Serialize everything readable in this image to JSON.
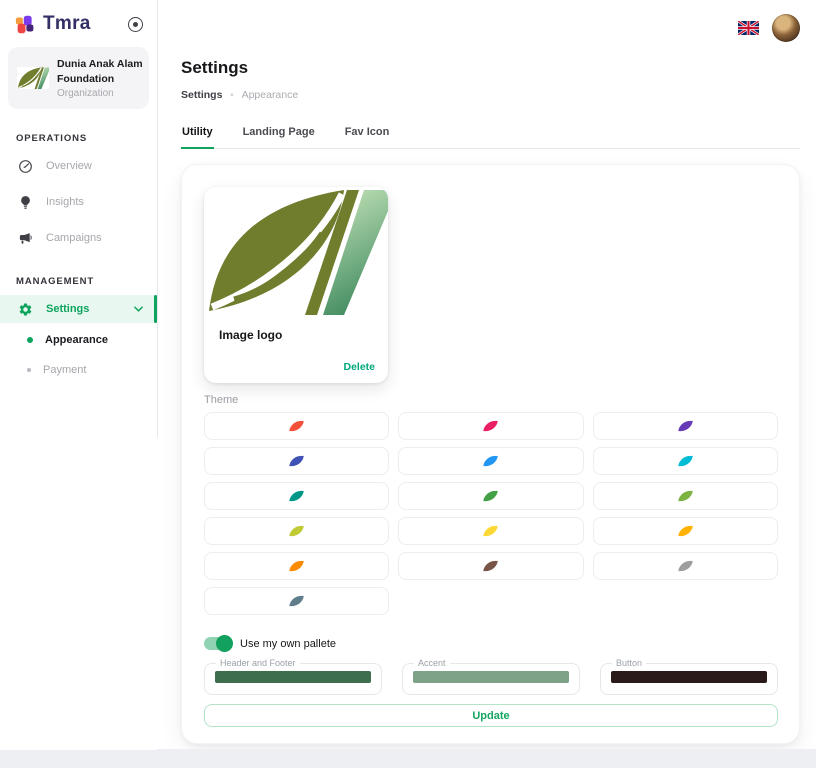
{
  "brand": {
    "name": "Tmra"
  },
  "sidebar": {
    "org": {
      "name": "Dunia Anak Alam Foundation",
      "type": "Organization"
    },
    "sections": [
      {
        "label": "OPERATIONS",
        "items": [
          {
            "label": "Overview",
            "icon": "gauge-icon"
          },
          {
            "label": "Insights",
            "icon": "lightbulb-icon"
          },
          {
            "label": "Campaigns",
            "icon": "megaphone-icon"
          }
        ]
      },
      {
        "label": "MANAGEMENT",
        "items": [
          {
            "label": "Settings",
            "icon": "gear-icon",
            "active": true,
            "expanded": true
          }
        ]
      }
    ],
    "settings_submenu": [
      {
        "label": "Appearance",
        "active": true
      },
      {
        "label": "Payment",
        "active": false
      }
    ]
  },
  "header": {
    "title": "Settings",
    "breadcrumb": {
      "parent": "Settings",
      "separator": "•",
      "current": "Appearance"
    },
    "language_icon": "uk-flag-icon"
  },
  "tabs": [
    {
      "label": "Utility",
      "active": true
    },
    {
      "label": "Landing Page",
      "active": false
    },
    {
      "label": "Fav Icon",
      "active": false
    }
  ],
  "logo_card": {
    "caption": "Image logo",
    "delete_label": "Delete"
  },
  "theme": {
    "label": "Theme",
    "swatches": [
      "#F4503A",
      "#E91E63",
      "#673AB7",
      "#3F51B5",
      "#2196F3",
      "#00BCD4",
      "#009688",
      "#43A047",
      "#7CB342",
      "#C0CA33",
      "#FDD835",
      "#FFB300",
      "#FB8C00",
      "#795548",
      "#9E9E9E",
      "#607D8B"
    ]
  },
  "palette": {
    "toggle_label": "Use my own pallete",
    "toggle_on": true,
    "fields": [
      {
        "label": "Header and Footer",
        "color": "#3D6E4E"
      },
      {
        "label": "Accent",
        "color": "#7DA287"
      },
      {
        "label": "Button",
        "color": "#2B1A1A"
      }
    ],
    "update_label": "Update"
  },
  "colors": {
    "accent_green": "#0EA45E",
    "active_item_bg": "#E8F8F0",
    "delete_teal": "#00A87C"
  }
}
